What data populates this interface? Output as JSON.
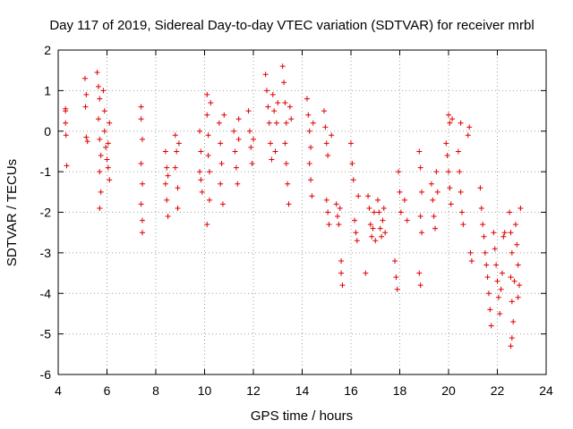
{
  "chart_data": {
    "type": "scatter",
    "title": "Day 117 of 2019, Sidereal Day-to-day VTEC variation (SDTVAR) for receiver mrbl",
    "xlabel": "GPS time / hours",
    "ylabel": "SDTVAR / TECUs",
    "xlim": [
      4,
      24
    ],
    "ylim": [
      -6,
      2
    ],
    "xticks": [
      4,
      6,
      8,
      10,
      12,
      14,
      16,
      18,
      20,
      22,
      24
    ],
    "yticks": [
      -6,
      -5,
      -4,
      -3,
      -2,
      -1,
      0,
      1,
      2
    ],
    "grid": true,
    "marker": "+",
    "color": "#e00000",
    "series": [
      {
        "name": "SDTVAR",
        "points": [
          [
            4.3,
            0.5
          ],
          [
            4.3,
            0.2
          ],
          [
            4.32,
            -0.1
          ],
          [
            4.35,
            -0.85
          ],
          [
            4.3,
            0.55
          ],
          [
            5.1,
            1.3
          ],
          [
            5.15,
            0.9
          ],
          [
            5.12,
            0.6
          ],
          [
            5.15,
            -0.15
          ],
          [
            5.2,
            -0.25
          ],
          [
            5.6,
            1.45
          ],
          [
            5.65,
            1.1
          ],
          [
            5.7,
            0.8
          ],
          [
            5.65,
            0.3
          ],
          [
            5.7,
            -0.2
          ],
          [
            5.75,
            -0.6
          ],
          [
            5.7,
            -1.0
          ],
          [
            5.75,
            -1.5
          ],
          [
            5.7,
            -1.9
          ],
          [
            5.85,
            1.0
          ],
          [
            5.9,
            0.5
          ],
          [
            5.9,
            0.0
          ],
          [
            5.95,
            -0.4
          ],
          [
            6.0,
            -0.7
          ],
          [
            6.05,
            -0.3
          ],
          [
            6.1,
            0.2
          ],
          [
            6.05,
            -0.9
          ],
          [
            6.1,
            -1.2
          ],
          [
            7.4,
            0.6
          ],
          [
            7.4,
            0.3
          ],
          [
            7.45,
            -0.2
          ],
          [
            7.4,
            -0.8
          ],
          [
            7.45,
            -1.3
          ],
          [
            7.4,
            -1.8
          ],
          [
            7.45,
            -2.2
          ],
          [
            7.45,
            -2.5
          ],
          [
            8.4,
            -0.5
          ],
          [
            8.45,
            -0.9
          ],
          [
            8.4,
            -1.3
          ],
          [
            8.45,
            -1.7
          ],
          [
            8.5,
            -2.1
          ],
          [
            8.5,
            -1.1
          ],
          [
            8.8,
            -0.1
          ],
          [
            8.85,
            -0.5
          ],
          [
            8.8,
            -0.9
          ],
          [
            8.9,
            -1.4
          ],
          [
            8.9,
            -1.9
          ],
          [
            8.95,
            -0.3
          ],
          [
            9.8,
            0.0
          ],
          [
            9.85,
            -0.5
          ],
          [
            9.8,
            -1.0
          ],
          [
            9.9,
            -1.5
          ],
          [
            9.85,
            -1.2
          ],
          [
            10.1,
            0.9
          ],
          [
            10.1,
            0.4
          ],
          [
            10.15,
            -0.1
          ],
          [
            10.15,
            -0.6
          ],
          [
            10.2,
            -1.0
          ],
          [
            10.2,
            -1.7
          ],
          [
            10.1,
            -2.3
          ],
          [
            10.25,
            0.7
          ],
          [
            10.6,
            0.2
          ],
          [
            10.65,
            -0.3
          ],
          [
            10.7,
            -0.8
          ],
          [
            10.65,
            -1.3
          ],
          [
            10.75,
            -1.8
          ],
          [
            10.8,
            0.4
          ],
          [
            11.2,
            0.0
          ],
          [
            11.25,
            -0.5
          ],
          [
            11.3,
            -0.9
          ],
          [
            11.35,
            -1.3
          ],
          [
            11.4,
            0.3
          ],
          [
            11.4,
            -0.2
          ],
          [
            11.8,
            0.5
          ],
          [
            11.85,
            0.0
          ],
          [
            11.9,
            -0.4
          ],
          [
            11.95,
            -0.8
          ],
          [
            12.0,
            -0.2
          ],
          [
            12.5,
            1.4
          ],
          [
            12.55,
            1.0
          ],
          [
            12.6,
            0.6
          ],
          [
            12.65,
            0.2
          ],
          [
            12.7,
            -0.3
          ],
          [
            12.75,
            -0.7
          ],
          [
            12.8,
            0.9
          ],
          [
            12.85,
            0.5
          ],
          [
            12.9,
            -0.5
          ],
          [
            12.95,
            0.2
          ],
          [
            13.0,
            0.7
          ],
          [
            13.2,
            1.6
          ],
          [
            13.25,
            1.2
          ],
          [
            13.3,
            0.7
          ],
          [
            13.35,
            0.2
          ],
          [
            13.3,
            -0.3
          ],
          [
            13.35,
            -0.8
          ],
          [
            13.4,
            -1.3
          ],
          [
            13.45,
            -1.8
          ],
          [
            13.5,
            0.6
          ],
          [
            13.55,
            0.3
          ],
          [
            14.2,
            0.8
          ],
          [
            14.25,
            0.4
          ],
          [
            14.3,
            0.0
          ],
          [
            14.35,
            -0.4
          ],
          [
            14.3,
            -0.8
          ],
          [
            14.35,
            -1.2
          ],
          [
            14.4,
            -1.6
          ],
          [
            14.45,
            0.2
          ],
          [
            14.9,
            0.5
          ],
          [
            14.95,
            0.1
          ],
          [
            15.0,
            -0.3
          ],
          [
            15.05,
            -0.6
          ],
          [
            15.0,
            -1.7
          ],
          [
            15.05,
            -2.0
          ],
          [
            15.1,
            -2.3
          ],
          [
            15.2,
            -0.1
          ],
          [
            15.4,
            -1.8
          ],
          [
            15.45,
            -2.1
          ],
          [
            15.5,
            -2.3
          ],
          [
            15.55,
            -1.9
          ],
          [
            15.6,
            -3.2
          ],
          [
            15.6,
            -3.5
          ],
          [
            15.65,
            -3.8
          ],
          [
            16.0,
            -0.3
          ],
          [
            16.05,
            -0.8
          ],
          [
            16.1,
            -1.2
          ],
          [
            16.15,
            -2.2
          ],
          [
            16.2,
            -2.5
          ],
          [
            16.25,
            -2.7
          ],
          [
            16.3,
            -1.6
          ],
          [
            16.7,
            -1.6
          ],
          [
            16.75,
            -1.9
          ],
          [
            16.8,
            -2.3
          ],
          [
            16.85,
            -2.6
          ],
          [
            16.9,
            -2.4
          ],
          [
            16.95,
            -2.0
          ],
          [
            17.1,
            -1.7
          ],
          [
            17.15,
            -2.0
          ],
          [
            17.2,
            -2.4
          ],
          [
            17.25,
            -2.6
          ],
          [
            17.3,
            -2.2
          ],
          [
            17.35,
            -1.9
          ],
          [
            17.4,
            -2.5
          ],
          [
            17.0,
            -2.7
          ],
          [
            16.6,
            -3.5
          ],
          [
            17.8,
            -3.2
          ],
          [
            17.85,
            -3.6
          ],
          [
            17.9,
            -3.9
          ],
          [
            17.95,
            -1.0
          ],
          [
            18.0,
            -1.5
          ],
          [
            18.05,
            -2.0
          ],
          [
            18.2,
            -1.7
          ],
          [
            18.3,
            -2.2
          ],
          [
            18.8,
            -0.5
          ],
          [
            18.85,
            -0.9
          ],
          [
            18.9,
            -1.5
          ],
          [
            18.85,
            -2.1
          ],
          [
            18.9,
            -2.5
          ],
          [
            18.8,
            -3.5
          ],
          [
            18.85,
            -3.8
          ],
          [
            19.3,
            -1.3
          ],
          [
            19.35,
            -1.7
          ],
          [
            19.4,
            -2.1
          ],
          [
            19.45,
            -2.4
          ],
          [
            19.5,
            -1.0
          ],
          [
            19.55,
            -1.5
          ],
          [
            19.9,
            -0.3
          ],
          [
            19.95,
            -0.6
          ],
          [
            20.0,
            -1.0
          ],
          [
            20.05,
            -1.4
          ],
          [
            20.1,
            -1.8
          ],
          [
            20.0,
            0.4
          ],
          [
            20.05,
            0.2
          ],
          [
            20.15,
            0.3
          ],
          [
            20.4,
            -0.5
          ],
          [
            20.45,
            -1.0
          ],
          [
            20.5,
            -1.5
          ],
          [
            20.55,
            -2.0
          ],
          [
            20.6,
            -2.3
          ],
          [
            20.5,
            0.2
          ],
          [
            20.8,
            -0.1
          ],
          [
            20.85,
            0.1
          ],
          [
            20.9,
            -3.0
          ],
          [
            20.95,
            -3.2
          ],
          [
            21.3,
            -1.4
          ],
          [
            21.35,
            -1.9
          ],
          [
            21.4,
            -2.3
          ],
          [
            21.45,
            -2.6
          ],
          [
            21.5,
            -3.0
          ],
          [
            21.55,
            -3.3
          ],
          [
            21.6,
            -3.6
          ],
          [
            21.65,
            -4.0
          ],
          [
            21.7,
            -4.4
          ],
          [
            21.75,
            -4.8
          ],
          [
            21.85,
            -2.5
          ],
          [
            21.9,
            -2.9
          ],
          [
            21.95,
            -3.3
          ],
          [
            22.0,
            -3.7
          ],
          [
            22.05,
            -4.1
          ],
          [
            22.1,
            -4.5
          ],
          [
            22.15,
            -3.9
          ],
          [
            22.2,
            -3.5
          ],
          [
            22.25,
            -2.6
          ],
          [
            22.3,
            -2.5
          ],
          [
            22.5,
            -2.0
          ],
          [
            22.55,
            -2.5
          ],
          [
            22.6,
            -3.0
          ],
          [
            22.55,
            -3.6
          ],
          [
            22.6,
            -4.2
          ],
          [
            22.65,
            -4.7
          ],
          [
            22.6,
            -5.1
          ],
          [
            22.55,
            -5.3
          ],
          [
            22.75,
            -2.3
          ],
          [
            22.8,
            -2.8
          ],
          [
            22.85,
            -3.3
          ],
          [
            22.9,
            -3.8
          ],
          [
            22.85,
            -4.1
          ],
          [
            22.95,
            -1.9
          ],
          [
            22.7,
            -3.7
          ]
        ]
      }
    ]
  }
}
